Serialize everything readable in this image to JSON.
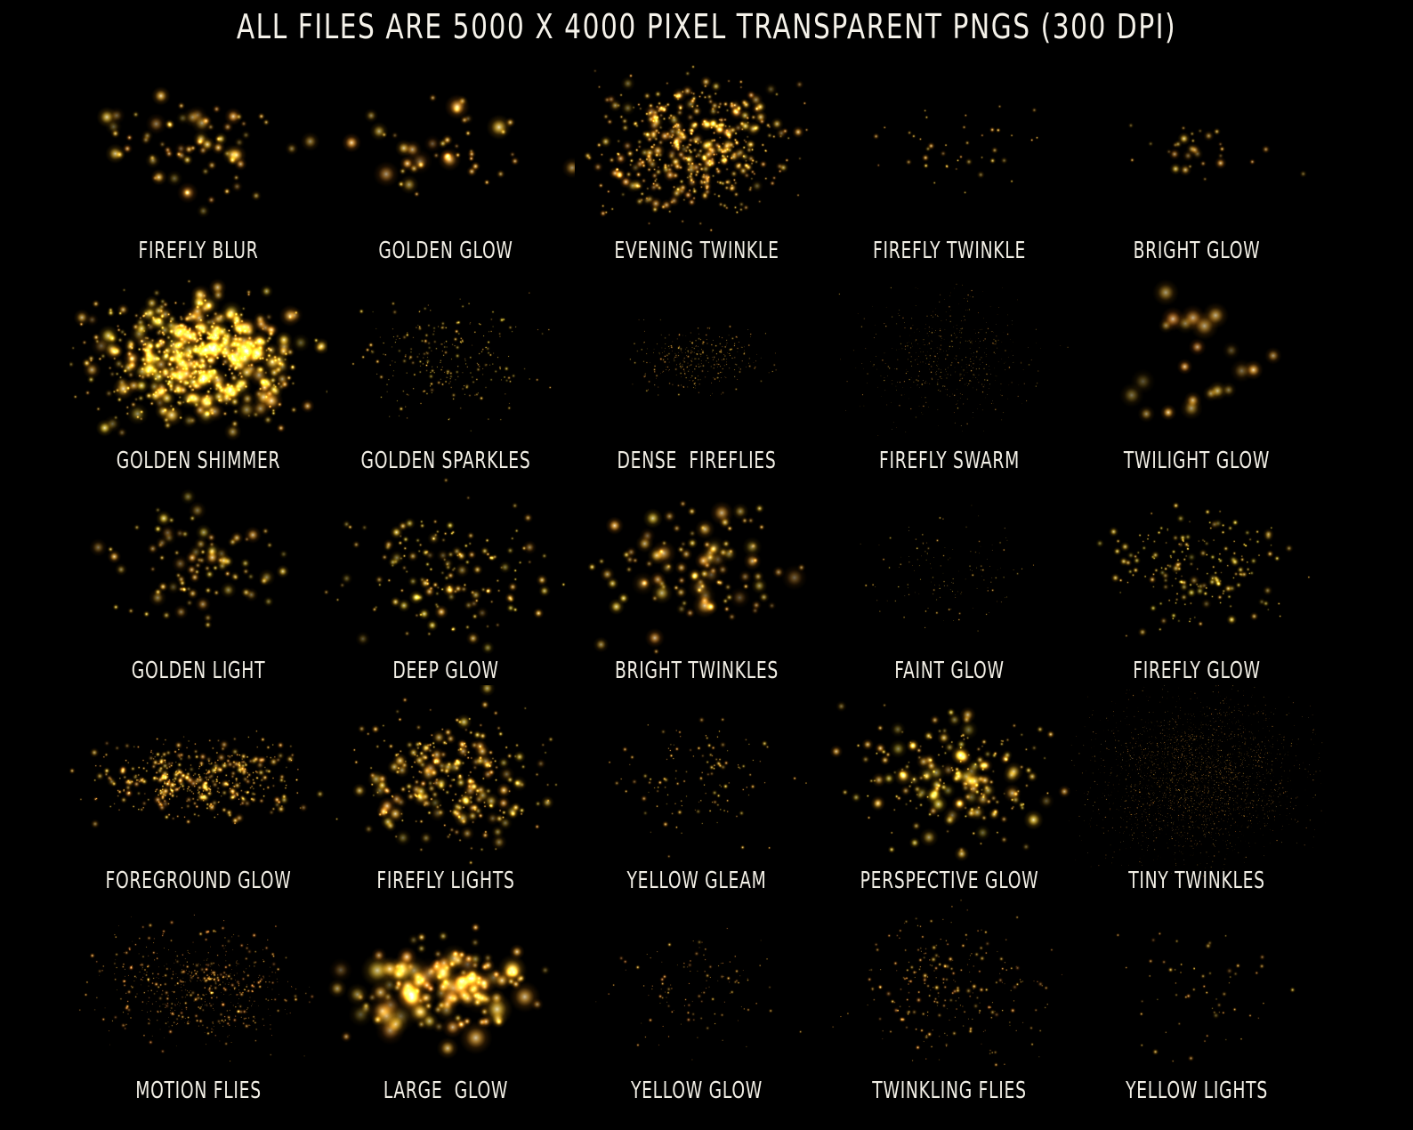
{
  "header": {
    "title": "ALL FILES ARE 5000 X 4000 PIXEL TRANSPARENT PNGS (300 DPI)"
  },
  "colors": {
    "background": "#000000",
    "text": "#f2efe6",
    "particle_core": "#fff3b0",
    "particle_glow": "#e0a51e"
  },
  "overlays": [
    {
      "label": "FIREFLY BLUR"
    },
    {
      "label": "GOLDEN GLOW"
    },
    {
      "label": "EVENING TWINKLE"
    },
    {
      "label": "FIREFLY TWINKLE"
    },
    {
      "label": "BRIGHT GLOW"
    },
    {
      "label": "GOLDEN SHIMMER"
    },
    {
      "label": "GOLDEN SPARKLES"
    },
    {
      "label": "DENSE  FIREFLIES"
    },
    {
      "label": "FIREFLY SWARM"
    },
    {
      "label": "TWILIGHT GLOW"
    },
    {
      "label": "GOLDEN LIGHT"
    },
    {
      "label": "DEEP GLOW"
    },
    {
      "label": "BRIGHT TWINKLES"
    },
    {
      "label": "FAINT GLOW"
    },
    {
      "label": "FIREFLY GLOW"
    },
    {
      "label": "FOREGROUND GLOW"
    },
    {
      "label": "FIREFLY LIGHTS"
    },
    {
      "label": "YELLOW GLEAM"
    },
    {
      "label": "PERSPECTIVE GLOW"
    },
    {
      "label": "TINY TWINKLES"
    },
    {
      "label": "MOTION FLIES"
    },
    {
      "label": "LARGE  GLOW"
    },
    {
      "label": "YELLOW GLOW"
    },
    {
      "label": "TWINKLING FLIES"
    },
    {
      "label": "YELLOW LIGHTS"
    }
  ]
}
